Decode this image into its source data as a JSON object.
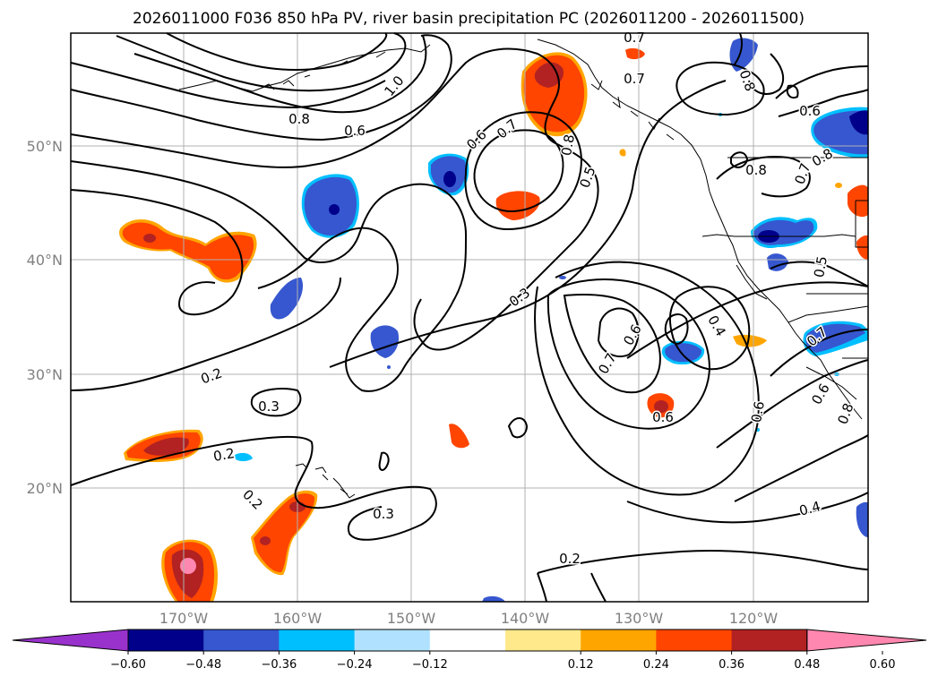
{
  "title": "2026011000 F036 850 hPa PV, river basin precipitation PC (2026011200 - 2026011500)",
  "lat_labels": [
    "50°N",
    "40°N",
    "30°N",
    "20°N"
  ],
  "lon_labels": [
    "170°W",
    "160°W",
    "150°W",
    "140°W",
    "130°W",
    "120°W"
  ],
  "contour_labels": [
    {
      "text": "0.7"
    },
    {
      "text": "1.0"
    },
    {
      "text": "0.8"
    },
    {
      "text": "0.6"
    },
    {
      "text": "0.6"
    },
    {
      "text": "0.7"
    },
    {
      "text": "0.8"
    },
    {
      "text": "0.5"
    },
    {
      "text": "0.7"
    },
    {
      "text": "0.8"
    },
    {
      "text": "0.6"
    },
    {
      "text": "0.8"
    },
    {
      "text": "0.8"
    },
    {
      "text": "0.7"
    },
    {
      "text": "0.3"
    },
    {
      "text": "0.2"
    },
    {
      "text": "0.3"
    },
    {
      "text": "0.2"
    },
    {
      "text": "0.2"
    },
    {
      "text": "0.3"
    },
    {
      "text": "0.2"
    },
    {
      "text": "0.7"
    },
    {
      "text": "0.6"
    },
    {
      "text": "0.6"
    },
    {
      "text": "0.4"
    },
    {
      "text": "0.6"
    },
    {
      "text": "0.6"
    },
    {
      "text": "0.4"
    },
    {
      "text": "0.5"
    },
    {
      "text": "0.7"
    },
    {
      "text": "0.8"
    }
  ],
  "colorbar": {
    "ticks": [
      "−0.60",
      "−0.48",
      "−0.36",
      "−0.24",
      "−0.12",
      "0.12",
      "0.24",
      "0.36",
      "0.48",
      "0.60"
    ],
    "colors": [
      "#9932cc",
      "#00008b",
      "#3657cf",
      "#00bfff",
      "#b0e2ff",
      "#ffffff",
      "#ffe98a",
      "#ffa500",
      "#ff4500",
      "#b22222",
      "#ff87b0"
    ]
  },
  "colors": {
    "blue": "#3657cf",
    "navy": "#00008b",
    "cyan": "#00bfff",
    "orange": "#ff4500",
    "darkred": "#b22222",
    "pink": "#ff87b0",
    "yellow": "#ffe98a",
    "amber": "#ffa500"
  }
}
